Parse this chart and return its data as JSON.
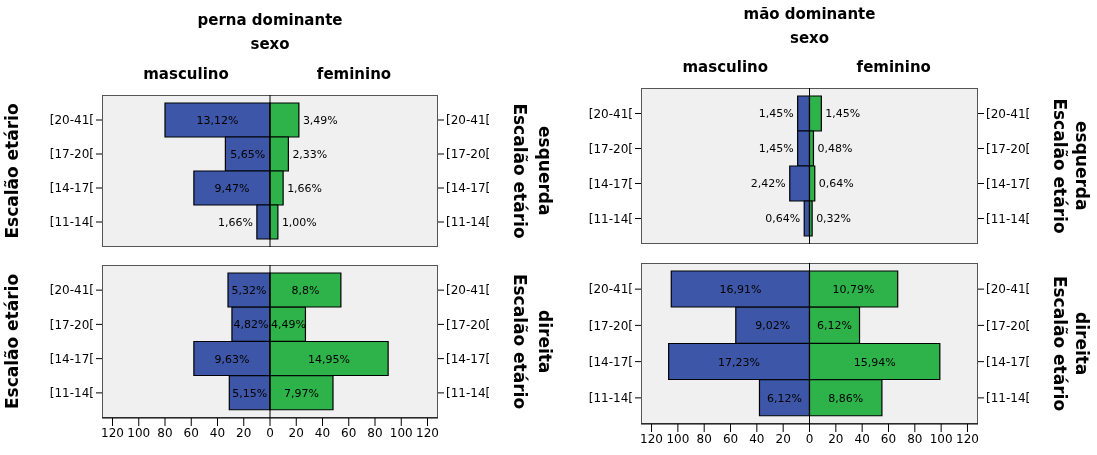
{
  "chart_data": [
    {
      "type": "bar",
      "orientation": "horizontal",
      "stacked": true,
      "title": "perna dominante",
      "subtitle": "sexo",
      "ylabel": "Escalão etário",
      "y2label": "Escalão etário",
      "categories": [
        "[20-41[",
        "[17-20[",
        "[14-17[",
        "[11-14["
      ],
      "annotations": [
        "esquerda",
        {
          "text": "13,12%",
          "x": -40,
          "y": "[20-41["
        },
        {
          "text": "5,65%",
          "x": -17,
          "y": "[17-20["
        },
        {
          "text": "9,47%",
          "x": -29,
          "y": "[14-17["
        },
        {
          "text": "1,66%",
          "x": -10,
          "y": "[11-14["
        },
        {
          "text": "3,49%",
          "x": 22,
          "y": "[20-41["
        },
        {
          "text": "2,33%",
          "x": 14,
          "y": "[17-20["
        },
        {
          "text": "1,66%",
          "x": 10,
          "y": "[14-17["
        },
        {
          "text": "1,00%",
          "x": 6,
          "y": "[11-14["
        }
      ],
      "series": [
        {
          "name": "masculino",
          "color": "#3d56a8",
          "values": [
            -80,
            -34,
            -58,
            -10
          ]
        },
        {
          "name": "feminino",
          "color": "#2eb34a",
          "values": [
            22,
            14,
            10,
            6
          ]
        }
      ],
      "xlim": [
        -128,
        128
      ],
      "xticks": [
        {
          "value": -120,
          "label": "120"
        },
        {
          "value": -100,
          "label": "100"
        },
        {
          "value": -80,
          "label": "80"
        },
        {
          "value": -60,
          "label": "60"
        },
        {
          "value": -40,
          "label": "40"
        },
        {
          "value": -20,
          "label": "20"
        },
        0,
        20,
        40,
        60,
        80,
        100,
        120
      ],
      "tick_labels": "y",
      "ref_lines": [
        {
          "axis": "x",
          "value": 0,
          "color": "#000000"
        }
      ]
    },
    {
      "type": "bar",
      "orientation": "horizontal",
      "stacked": true,
      "title": "mão dominante",
      "subtitle": "sexo",
      "y2label": "Escalão etário",
      "categories": [
        "[20-41[",
        "[17-20[",
        "[14-17[",
        "[11-14["
      ],
      "annotations": [
        "esquerda",
        {
          "text": "1,45%",
          "x": -9,
          "y": "[20-41["
        },
        {
          "text": "1,45%",
          "x": -9,
          "y": "[17-20["
        },
        {
          "text": "2,42%",
          "x": -15,
          "y": "[14-17["
        },
        {
          "text": "0,64%",
          "x": -4,
          "y": "[11-14["
        },
        {
          "text": "1,45%",
          "x": 9,
          "y": "[20-41["
        },
        {
          "text": "0,48%",
          "x": 3,
          "y": "[17-20["
        },
        {
          "text": "0,64%",
          "x": 4,
          "y": "[14-17["
        },
        {
          "text": "0,32%",
          "x": 2,
          "y": "[11-14["
        }
      ],
      "series": [
        {
          "name": "masculino",
          "color": "#3d56a8",
          "values": [
            -9,
            -9,
            -15,
            -4
          ]
        },
        {
          "name": "feminino",
          "color": "#2eb34a",
          "values": [
            9,
            3,
            4,
            2
          ]
        }
      ],
      "xlim": [
        -128,
        128
      ],
      "xticks": [
        {
          "value": -120,
          "label": "120"
        },
        {
          "value": -100,
          "label": "100"
        },
        {
          "value": -80,
          "label": "80"
        },
        {
          "value": -60,
          "label": "60"
        },
        {
          "value": -40,
          "label": "40"
        },
        {
          "value": -20,
          "label": "20"
        },
        0,
        20,
        40,
        60,
        80,
        100,
        120
      ],
      "tick_labels": "y",
      "ref_lines": [
        {
          "axis": "x",
          "value": 0,
          "color": "#000000"
        }
      ]
    },
    {
      "type": "bar",
      "orientation": "horizontal",
      "stacked": true,
      "ylabel": "Escalão etário",
      "y2label": "Escalão etário",
      "categories": [
        "[20-41[",
        "[17-20[",
        "[14-17[",
        "[11-14["
      ],
      "annotations": [
        "direita",
        {
          "text": "5,32%",
          "x": -16,
          "y": "[20-41["
        },
        {
          "text": "4,82%",
          "x": -14.5,
          "y": "[17-20["
        },
        {
          "text": "9,63%",
          "x": -29,
          "y": "[14-17["
        },
        {
          "text": "5,15%",
          "x": -15.5,
          "y": "[11-14["
        },
        {
          "text": "8,8%",
          "x": 27,
          "y": "[20-41["
        },
        {
          "text": "4,49%",
          "x": 14,
          "y": "[17-20["
        },
        {
          "text": "14,95%",
          "x": 45,
          "y": "[14-17["
        },
        {
          "text": "7,97%",
          "x": 24,
          "y": "[11-14["
        }
      ],
      "series": [
        {
          "color": "#3d56a8",
          "values": [
            -32,
            -29,
            -58,
            -31
          ]
        },
        {
          "color": "#2eb34a",
          "values": [
            54,
            27,
            90,
            48
          ]
        }
      ],
      "xlim": [
        -128,
        128
      ],
      "xticks": [
        {
          "value": -120,
          "label": "120"
        },
        {
          "value": -100,
          "label": "100"
        },
        {
          "value": -80,
          "label": "80"
        },
        {
          "value": -60,
          "label": "60"
        },
        {
          "value": -40,
          "label": "40"
        },
        {
          "value": -20,
          "label": "20"
        },
        0,
        20,
        40,
        60,
        80,
        100,
        120
      ],
      "ref_lines": [
        {
          "axis": "x",
          "value": 0,
          "color": "#000000"
        }
      ]
    },
    {
      "type": "bar",
      "orientation": "horizontal",
      "stacked": true,
      "y2label": "Escalão etário",
      "categories": [
        "[20-41[",
        "[17-20[",
        "[14-17[",
        "[11-14["
      ],
      "annotations": [
        "direita",
        {
          "text": "16,91%",
          "x": -52.5,
          "y": "[20-41["
        },
        {
          "text": "9,02%",
          "x": -28,
          "y": "[17-20["
        },
        {
          "text": "17,23%",
          "x": -53.5,
          "y": "[14-17["
        },
        {
          "text": "6,12%",
          "x": -19,
          "y": "[11-14["
        },
        {
          "text": "10,79%",
          "x": 33.5,
          "y": "[20-41["
        },
        {
          "text": "6,12%",
          "x": 19,
          "y": "[17-20["
        },
        {
          "text": "15,94%",
          "x": 49.5,
          "y": "[14-17["
        },
        {
          "text": "8,86%",
          "x": 27.5,
          "y": "[11-14["
        }
      ],
      "series": [
        {
          "color": "#3d56a8",
          "values": [
            -105,
            -56,
            -107,
            -38
          ]
        },
        {
          "color": "#2eb34a",
          "values": [
            67,
            38,
            99,
            55
          ]
        }
      ],
      "xlim": [
        -128,
        128
      ],
      "xticks": [
        {
          "value": -120,
          "label": "120"
        },
        {
          "value": -100,
          "label": "100"
        },
        {
          "value": -80,
          "label": "80"
        },
        {
          "value": -60,
          "label": "60"
        },
        {
          "value": -40,
          "label": "40"
        },
        {
          "value": -20,
          "label": "20"
        },
        0,
        20,
        40,
        60,
        80,
        100,
        120
      ],
      "ref_lines": [
        {
          "axis": "x",
          "value": 0,
          "color": "#000000"
        }
      ]
    }
  ]
}
